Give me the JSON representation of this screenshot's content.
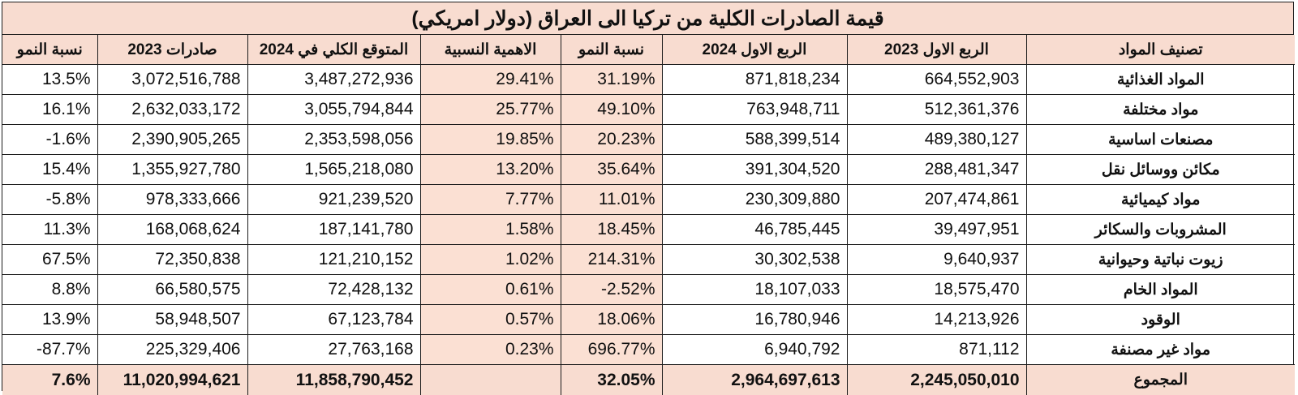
{
  "title": "قيمة الصادرات الكلية من تركيا الى العراق (دولار امريكي)",
  "headers": {
    "growth_2023": "نسبة النمو",
    "exports_2023": "صادرات 2023",
    "expected_2024": "المتوقع الكلي في 2024",
    "relative_importance": "الاهمية النسبية",
    "growth_q1": "نسبة النمو",
    "q1_2024": "الربع الاول 2024",
    "q1_2023": "الربع الاول 2023",
    "category": "تصنيف المواد"
  },
  "rows": [
    {
      "growth_2023": "13.5%",
      "exports_2023": "3,072,516,788",
      "expected_2024": "3,487,272,936",
      "relative_importance": "29.41%",
      "growth_q1": "31.19%",
      "q1_2024": "871,818,234",
      "q1_2023": "664,552,903",
      "category": "المواد الغذائية"
    },
    {
      "growth_2023": "16.1%",
      "exports_2023": "2,632,033,172",
      "expected_2024": "3,055,794,844",
      "relative_importance": "25.77%",
      "growth_q1": "49.10%",
      "q1_2024": "763,948,711",
      "q1_2023": "512,361,376",
      "category": "مواد مختلفة"
    },
    {
      "growth_2023": "-1.6%",
      "exports_2023": "2,390,905,265",
      "expected_2024": "2,353,598,056",
      "relative_importance": "19.85%",
      "growth_q1": "20.23%",
      "q1_2024": "588,399,514",
      "q1_2023": "489,380,127",
      "category": "مصنعات اساسية"
    },
    {
      "growth_2023": "15.4%",
      "exports_2023": "1,355,927,780",
      "expected_2024": "1,565,218,080",
      "relative_importance": "13.20%",
      "growth_q1": "35.64%",
      "q1_2024": "391,304,520",
      "q1_2023": "288,481,347",
      "category": "مكائن ووسائل نقل"
    },
    {
      "growth_2023": "-5.8%",
      "exports_2023": "978,333,666",
      "expected_2024": "921,239,520",
      "relative_importance": "7.77%",
      "growth_q1": "11.01%",
      "q1_2024": "230,309,880",
      "q1_2023": "207,474,861",
      "category": "مواد كيميائية"
    },
    {
      "growth_2023": "11.3%",
      "exports_2023": "168,068,624",
      "expected_2024": "187,141,780",
      "relative_importance": "1.58%",
      "growth_q1": "18.45%",
      "q1_2024": "46,785,445",
      "q1_2023": "39,497,951",
      "category": "المشروبات والسكائر"
    },
    {
      "growth_2023": "67.5%",
      "exports_2023": "72,350,838",
      "expected_2024": "121,210,152",
      "relative_importance": "1.02%",
      "growth_q1": "214.31%",
      "q1_2024": "30,302,538",
      "q1_2023": "9,640,937",
      "category": "زيوت نباتية وحيوانية"
    },
    {
      "growth_2023": "8.8%",
      "exports_2023": "66,580,575",
      "expected_2024": "72,428,132",
      "relative_importance": "0.61%",
      "growth_q1": "-2.52%",
      "q1_2024": "18,107,033",
      "q1_2023": "18,575,470",
      "category": "المواد الخام"
    },
    {
      "growth_2023": "13.9%",
      "exports_2023": "58,948,507",
      "expected_2024": "67,123,784",
      "relative_importance": "0.57%",
      "growth_q1": "18.06%",
      "q1_2024": "16,780,946",
      "q1_2023": "14,213,926",
      "category": "الوقود"
    },
    {
      "growth_2023": "-87.7%",
      "exports_2023": "225,329,406",
      "expected_2024": "27,763,168",
      "relative_importance": "0.23%",
      "growth_q1": "696.77%",
      "q1_2024": "6,940,792",
      "q1_2023": "871,112",
      "category": "مواد غير مصنفة"
    }
  ],
  "total": {
    "growth_2023": "7.6%",
    "exports_2023": "11,020,994,621",
    "expected_2024": "11,858,790,452",
    "relative_importance": "",
    "growth_q1": "32.05%",
    "q1_2024": "2,964,697,613",
    "q1_2023": "2,245,050,010",
    "category": "المجموع"
  },
  "colors": {
    "header_fill": "#f8dcd0",
    "shade_fill": "#fbe0d3",
    "border": "#1c1c1c"
  }
}
